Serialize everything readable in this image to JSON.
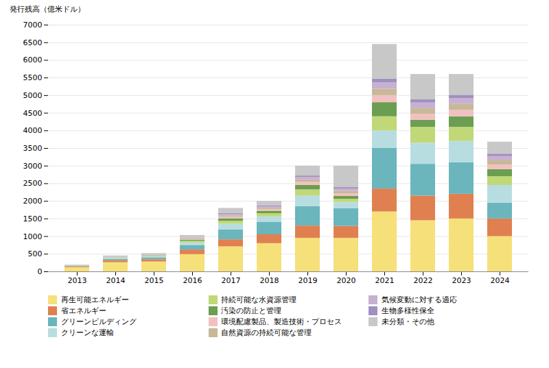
{
  "chart_data": {
    "type": "bar",
    "stacked": true,
    "categories": [
      "2013",
      "2014",
      "2015",
      "2016",
      "2017",
      "2018",
      "2019",
      "2020",
      "2021",
      "2022",
      "2023",
      "2024"
    ],
    "series": [
      {
        "name": "再生可能エネルギー",
        "color": "#F5E07A",
        "values": [
          120,
          260,
          280,
          490,
          710,
          800,
          950,
          950,
          1700,
          1450,
          1500,
          1000
        ]
      },
      {
        "name": "省エネルギー",
        "color": "#E08050",
        "values": [
          25,
          55,
          65,
          130,
          200,
          250,
          350,
          340,
          650,
          700,
          700,
          500
        ]
      },
      {
        "name": "グリーンビルディング",
        "color": "#6BB5BD",
        "values": [
          15,
          45,
          55,
          130,
          280,
          350,
          550,
          500,
          1150,
          900,
          900,
          450
        ]
      },
      {
        "name": "クリーンな運輸",
        "color": "#B8DDE0",
        "values": [
          8,
          18,
          25,
          70,
          160,
          160,
          300,
          180,
          500,
          600,
          600,
          500
        ]
      },
      {
        "name": "持続可能な水資源管理",
        "color": "#C0D878",
        "values": [
          5,
          12,
          18,
          45,
          85,
          90,
          175,
          90,
          400,
          450,
          400,
          250
        ]
      },
      {
        "name": "汚染の防止と管理",
        "color": "#6B9E50",
        "values": [
          4,
          8,
          12,
          35,
          70,
          70,
          130,
          85,
          400,
          200,
          300,
          200
        ]
      },
      {
        "name": "環境配慮製品、製造技術・プロセス",
        "color": "#F2C0C0",
        "values": [
          3,
          7,
          8,
          18,
          45,
          45,
          85,
          70,
          200,
          170,
          180,
          130
        ]
      },
      {
        "name": "自然資源の持続可能な管理",
        "color": "#C8B898",
        "values": [
          3,
          7,
          8,
          18,
          40,
          40,
          70,
          65,
          180,
          160,
          170,
          120
        ]
      },
      {
        "name": "気候変動に対する適応",
        "color": "#C8B0D0",
        "values": [
          3,
          7,
          8,
          18,
          40,
          40,
          70,
          65,
          180,
          160,
          170,
          120
        ]
      },
      {
        "name": "生物多様性保全",
        "color": "#A090C0",
        "values": [
          0,
          4,
          4,
          8,
          25,
          25,
          40,
          45,
          110,
          90,
          90,
          70
        ]
      },
      {
        "name": "未分類・その他",
        "color": "#C8C8C8",
        "values": [
          9,
          27,
          35,
          70,
          145,
          130,
          280,
          610,
          980,
          720,
          590,
          340
        ]
      }
    ],
    "ylabel": "発行残高（億米ドル）",
    "ylim": [
      0,
      7000
    ],
    "yticks": [
      0,
      500,
      1000,
      1500,
      2000,
      2500,
      3000,
      3500,
      4000,
      4500,
      5000,
      5500,
      6000,
      6500,
      7000
    ],
    "grid": true,
    "legend": "bottom"
  }
}
